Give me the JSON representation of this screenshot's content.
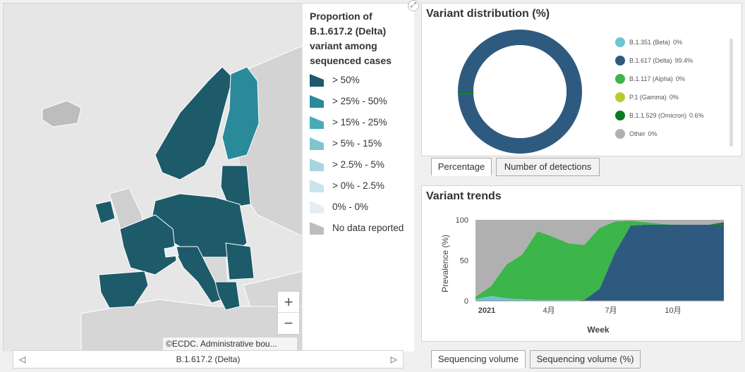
{
  "map": {
    "legend_title": "Proportion of B.1.617.2 (Delta) variant among sequenced cases",
    "legend": [
      {
        "label": "> 50%",
        "color": "#1d5a6a"
      },
      {
        "label": "> 25% - 50%",
        "color": "#2a8a9a"
      },
      {
        "label": "> 15% - 25%",
        "color": "#4aabb8"
      },
      {
        "label": "> 5% - 15%",
        "color": "#7ec6cf"
      },
      {
        "label": "> 2.5% - 5%",
        "color": "#a7d6dd"
      },
      {
        "label": "> 0% - 2.5%",
        "color": "#c8e4ea"
      },
      {
        "label": "0% - 0%",
        "color": "#e6eef4"
      },
      {
        "label": "No data reported",
        "color": "#bdbdbd"
      }
    ],
    "zoom_in": "+",
    "zoom_out": "−",
    "attribution": "©ECDC. Administrative bou...",
    "pager_label": "B.1.617.2 (Delta)"
  },
  "distribution": {
    "title": "Variant distribution (%)",
    "items": [
      {
        "label": "B.1.351 (Beta)",
        "value": "0%",
        "color": "#6cc5d2"
      },
      {
        "label": "B.1.617 (Delta)",
        "value": "99.4%",
        "color": "#2e5a80"
      },
      {
        "label": "B.1.117 (Alpha)",
        "value": "0%",
        "color": "#3cb54a"
      },
      {
        "label": "P.1 (Gamma)",
        "value": "0%",
        "color": "#b6cc2e"
      },
      {
        "label": "B.1.1.529 (Omicron)",
        "value": "0.6%",
        "color": "#0c7a1e"
      },
      {
        "label": "Other",
        "value": "0%",
        "color": "#b0b0b0"
      }
    ],
    "tabs": [
      "Percentage",
      "Number of detections"
    ]
  },
  "trends": {
    "title": "Variant trends",
    "ylabel": "Prevalence (%)",
    "xlabel": "Week",
    "yticks": [
      "0",
      "50",
      "100"
    ],
    "xticks": [
      "2021",
      "4月",
      "7月",
      "10月"
    ],
    "tabs": [
      "Sequencing volume",
      "Sequencing volume (%)"
    ]
  },
  "chart_data": [
    {
      "type": "pie",
      "title": "Variant distribution (%)",
      "categories": [
        "B.1.351 (Beta)",
        "B.1.617 (Delta)",
        "B.1.117 (Alpha)",
        "P.1 (Gamma)",
        "B.1.1.529 (Omicron)",
        "Other"
      ],
      "values": [
        0,
        99.4,
        0,
        0,
        0.6,
        0
      ]
    },
    {
      "type": "area",
      "title": "Variant trends",
      "xlabel": "Week",
      "ylabel": "Prevalence (%)",
      "ylim": [
        0,
        100
      ],
      "x": [
        "2021-W01",
        "2021-W04",
        "2021-W07",
        "2021-W10",
        "2021-W13",
        "2021-W16",
        "2021-W19",
        "2021-W22",
        "2021-W25",
        "2021-W28",
        "2021-W31",
        "2021-W34",
        "2021-W37",
        "2021-W40",
        "2021-W43",
        "2021-W46",
        "2021-W49"
      ],
      "series": [
        {
          "name": "B.1.351 (Beta)",
          "values": [
            2,
            6,
            3,
            2,
            1,
            1,
            1,
            0,
            0,
            0,
            0,
            0,
            0,
            0,
            0,
            0,
            0
          ]
        },
        {
          "name": "B.1.617 (Delta)",
          "values": [
            0,
            0,
            0,
            0,
            0,
            0,
            0,
            1,
            15,
            60,
            93,
            94,
            94,
            94,
            94,
            94,
            94
          ]
        },
        {
          "name": "B.1.117 (Alpha)",
          "values": [
            3,
            12,
            42,
            55,
            85,
            78,
            70,
            68,
            75,
            38,
            6,
            3,
            1,
            0,
            0,
            0,
            0
          ]
        },
        {
          "name": "B.1.1.529 (Omicron)",
          "values": [
            0,
            0,
            0,
            0,
            0,
            0,
            0,
            0,
            0,
            0,
            0,
            0,
            0,
            0,
            0,
            0,
            3
          ]
        },
        {
          "name": "Other",
          "values": [
            95,
            82,
            55,
            43,
            14,
            21,
            29,
            31,
            10,
            2,
            1,
            3,
            5,
            6,
            6,
            6,
            3
          ]
        }
      ]
    }
  ]
}
